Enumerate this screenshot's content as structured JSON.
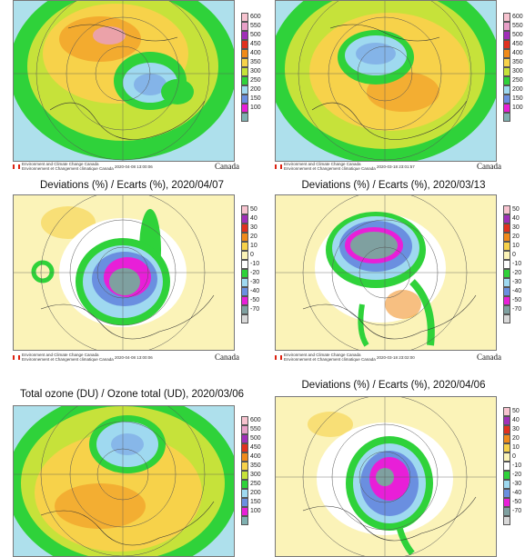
{
  "panels": [
    {
      "id": "p1",
      "kind": "ozone",
      "title": "",
      "timestamp": "2020-04-08 13:00:06",
      "footer": [
        "Environment and Climate Change Canada",
        "Environnement et Changement climatique Canada"
      ],
      "wordmark": "Canada"
    },
    {
      "id": "p2",
      "kind": "ozone",
      "title": "",
      "timestamp": "2020-03-18 23:01:57",
      "footer": [
        "Environment and Climate Change Canada",
        "Environnement et Changement climatique Canada"
      ],
      "wordmark": "Canada"
    },
    {
      "id": "p3",
      "kind": "deviation",
      "title": "Deviations (%) / Ecarts (%), 2020/04/07",
      "timestamp": "2020-04-08 13:00:06",
      "footer": [
        "Environment and Climate Change Canada",
        "Environnement et Changement climatique Canada"
      ],
      "wordmark": "Canada"
    },
    {
      "id": "p4",
      "kind": "deviation",
      "title": "Deviations (%) / Ecarts (%), 2020/03/13",
      "timestamp": "2020-03-18 23:02:00",
      "footer": [
        "Environment and Climate Change Canada",
        "Environnement et Changement climatique Canada"
      ],
      "wordmark": "Canada"
    },
    {
      "id": "p5",
      "kind": "ozone",
      "title": "Total ozone (DU) / Ozone total (UD), 2020/03/06",
      "timestamp": "",
      "footer": [],
      "wordmark": ""
    },
    {
      "id": "p6",
      "kind": "deviation",
      "title": "Deviations (%) / Ecarts (%), 2020/04/06",
      "timestamp": "",
      "footer": [],
      "wordmark": ""
    }
  ],
  "legends": {
    "ozone": {
      "labels": [
        "600",
        "550",
        "500",
        "450",
        "400",
        "350",
        "300",
        "250",
        "200",
        "150",
        "100"
      ],
      "colors": [
        "#f7c3cf",
        "#e8a0c8",
        "#a02fb8",
        "#e0301e",
        "#f08a1a",
        "#f7d24a",
        "#c6e23a",
        "#2fd23a",
        "#9fd9f0",
        "#6a8fe0",
        "#e81fd8",
        "#7fb0b0"
      ]
    },
    "deviation": {
      "labels": [
        "50",
        "40",
        "30",
        "20",
        "10",
        "0",
        "-10",
        "-20",
        "-30",
        "-40",
        "-50",
        "-70"
      ],
      "colors": [
        "#f7c3cf",
        "#a02fb8",
        "#e0301e",
        "#f08a1a",
        "#f7d24a",
        "#fbf3b8",
        "#ffffff",
        "#2fd23a",
        "#9fd9f0",
        "#6a8fe0",
        "#e81fd8",
        "#7fa0a0",
        "#d8d8d8"
      ]
    }
  }
}
